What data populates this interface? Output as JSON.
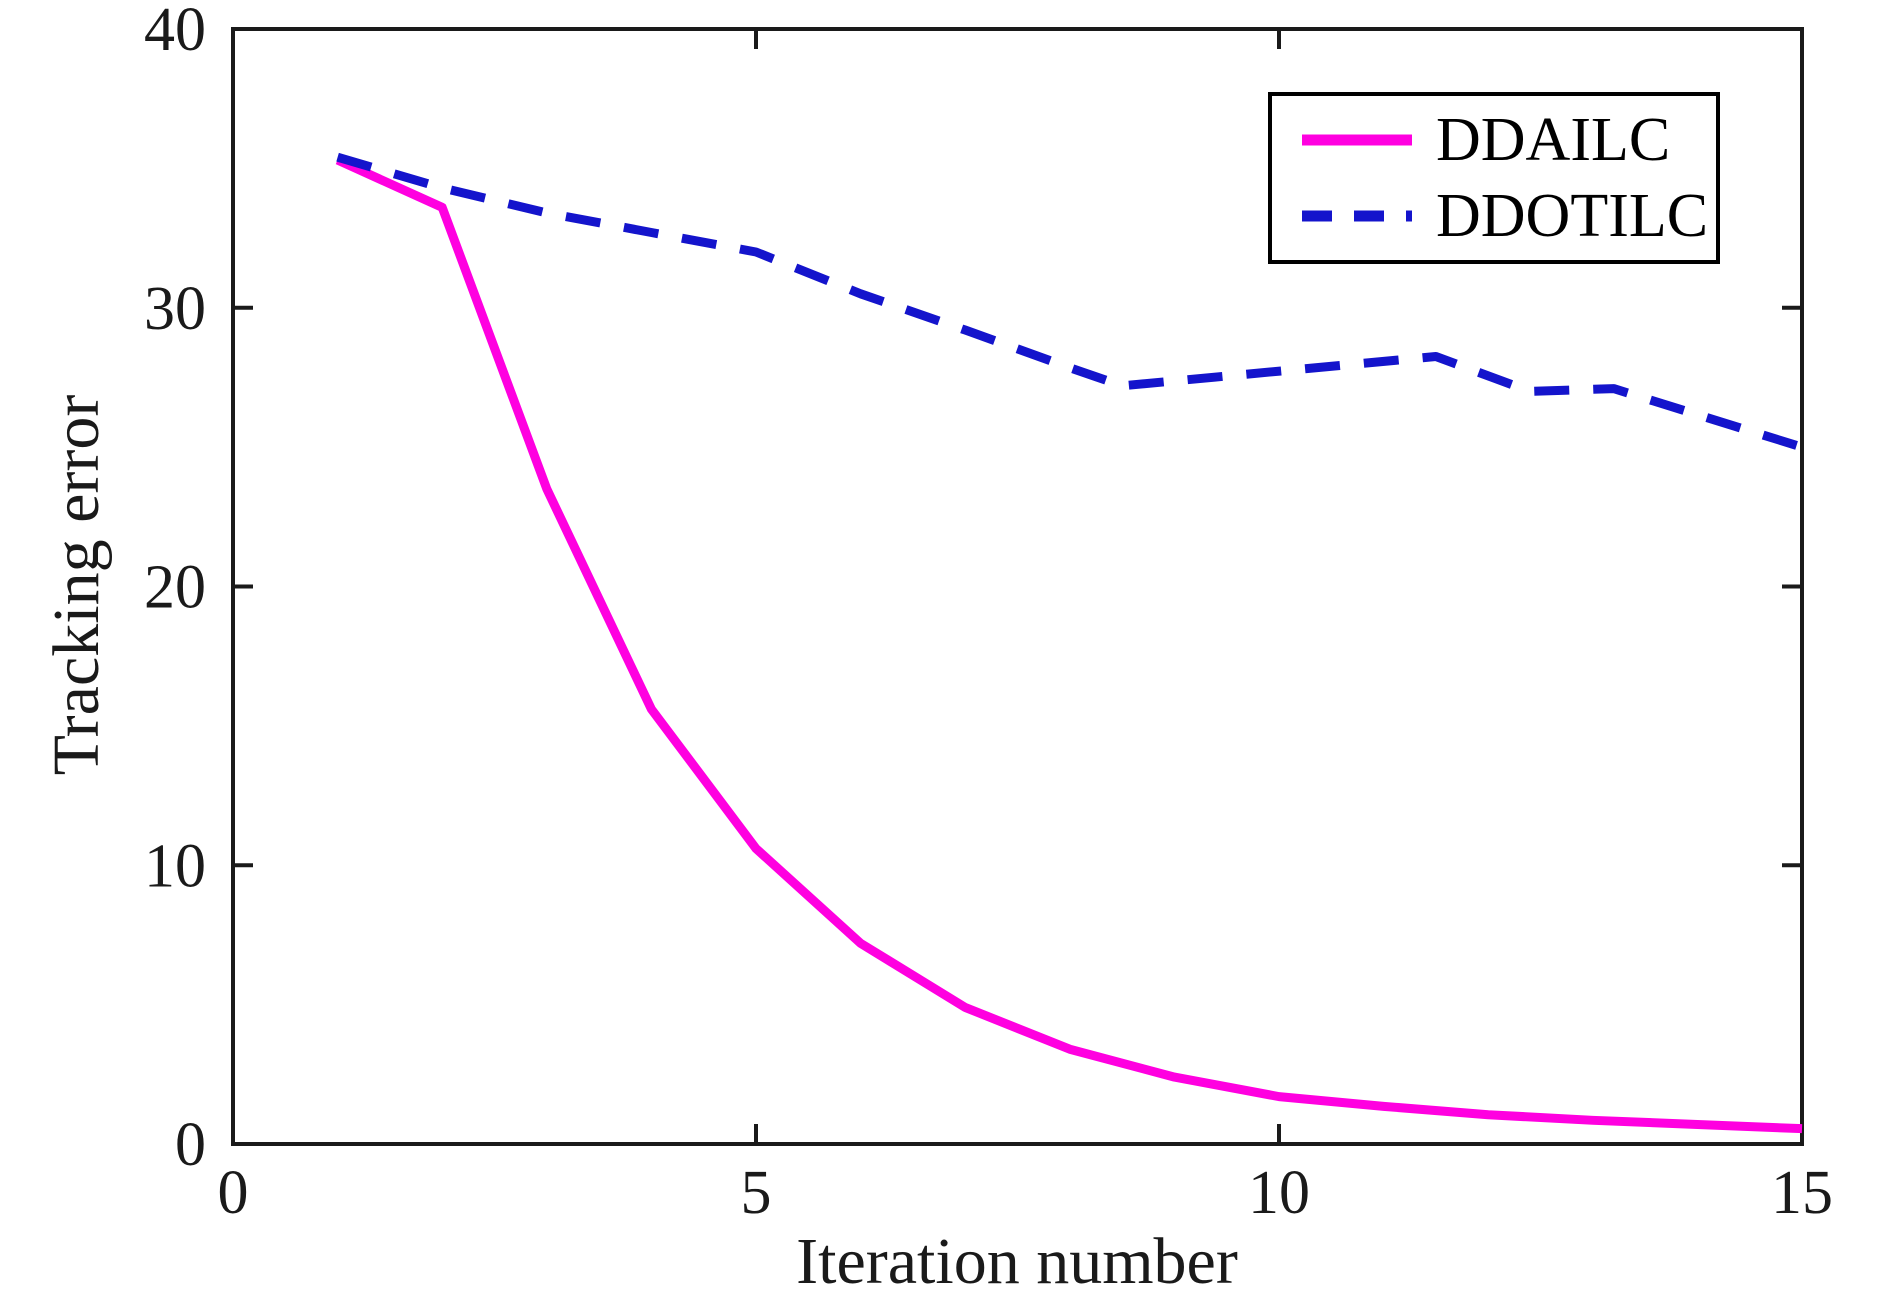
{
  "chart_data": {
    "type": "line",
    "title": "",
    "xlabel": "Iteration number",
    "ylabel": "Tracking error",
    "xlim": [
      0,
      15
    ],
    "ylim": [
      0,
      40
    ],
    "x_ticks": [
      0,
      5,
      10,
      15
    ],
    "y_ticks": [
      0,
      10,
      20,
      30,
      40
    ],
    "grid": false,
    "legend_position": "top-right",
    "axis_color": "#1a1a1a",
    "background_color": "#ffffff",
    "series": [
      {
        "name": "DDAILC",
        "color": "#FF00E0",
        "style": "solid",
        "x": [
          1,
          2,
          3,
          4,
          5,
          6,
          7,
          8,
          9,
          10,
          11,
          12,
          13,
          14,
          15
        ],
        "y": [
          35.3,
          33.6,
          23.5,
          15.6,
          10.6,
          7.2,
          4.9,
          3.4,
          2.4,
          1.7,
          1.35,
          1.05,
          0.85,
          0.7,
          0.55
        ]
      },
      {
        "name": "DDOTILC",
        "color": "#1414CC",
        "style": "dashed",
        "x": [
          1,
          2,
          3,
          4,
          5,
          6,
          7,
          8,
          8.5,
          11.5,
          12.4,
          13.2,
          15
        ],
        "y": [
          35.4,
          34.3,
          33.4,
          32.7,
          32.0,
          30.5,
          29.2,
          27.85,
          27.2,
          28.25,
          27.0,
          27.1,
          25.0
        ]
      }
    ]
  }
}
